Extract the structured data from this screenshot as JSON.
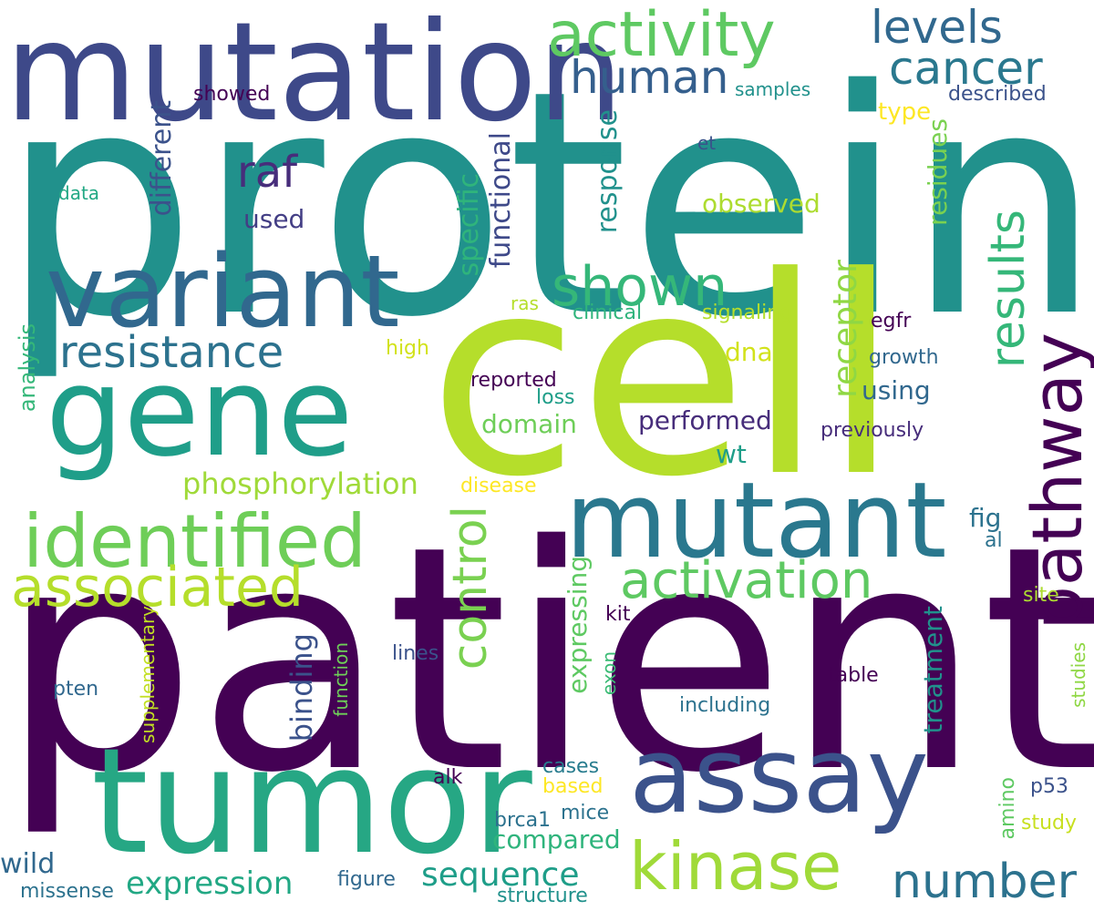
{
  "colors": {
    "background": "#ffffff",
    "dark_purple": "#440154",
    "indigo": "#3e4989",
    "blue_purple": "#472d7b",
    "steel_blue": "#31688e",
    "teal": "#21918c",
    "teal_green": "#1f9e89",
    "green": "#35b779",
    "light_green": "#6ece58",
    "lime": "#b5de2b",
    "yellow": "#fde725"
  },
  "words": [
    {
      "text": "protein",
      "color": "#21918c"
    },
    {
      "text": "patient",
      "color": "#440154"
    },
    {
      "text": "cell",
      "color": "#b5de2b"
    },
    {
      "text": "mutation",
      "color": "#3e4989"
    },
    {
      "text": "gene",
      "color": "#1f9e89"
    },
    {
      "text": "tumor",
      "color": "#26a784"
    },
    {
      "text": "variant",
      "color": "#31688e"
    },
    {
      "text": "mutant",
      "color": "#2a788e"
    },
    {
      "text": "assay",
      "color": "#3b528b"
    },
    {
      "text": "identified",
      "color": "#6ece58"
    },
    {
      "text": "activity",
      "color": "#5ec962"
    },
    {
      "text": "kinase",
      "color": "#a0da39"
    },
    {
      "text": "pathway",
      "color": "#440154"
    },
    {
      "text": "associated",
      "color": "#b5de2b"
    },
    {
      "text": "activation",
      "color": "#5ec962"
    },
    {
      "text": "shown",
      "color": "#35b779"
    },
    {
      "text": "resistance",
      "color": "#2c728e"
    },
    {
      "text": "cancer",
      "color": "#2a788e"
    },
    {
      "text": "human",
      "color": "#355f8d"
    },
    {
      "text": "number",
      "color": "#2c728e"
    },
    {
      "text": "control",
      "color": "#7ad151"
    },
    {
      "text": "levels",
      "color": "#31688e"
    },
    {
      "text": "raf",
      "color": "#472d7b"
    },
    {
      "text": "results",
      "color": "#35b779"
    },
    {
      "text": "expression",
      "color": "#22a884"
    },
    {
      "text": "sequence",
      "color": "#1f9e89"
    },
    {
      "text": "phosphorylation",
      "color": "#a0da39"
    },
    {
      "text": "performed",
      "color": "#472d7b"
    },
    {
      "text": "receptor",
      "color": "#8fd744"
    },
    {
      "text": "domain",
      "color": "#6ece58"
    },
    {
      "text": "compared",
      "color": "#2fb47c"
    },
    {
      "text": "wild",
      "color": "#31688e"
    },
    {
      "text": "binding",
      "color": "#3b528b"
    },
    {
      "text": "observed",
      "color": "#addc30"
    },
    {
      "text": "using",
      "color": "#31688e"
    },
    {
      "text": "response",
      "color": "#21918c"
    },
    {
      "text": "different",
      "color": "#3b528b"
    },
    {
      "text": "functional",
      "color": "#3e4989"
    },
    {
      "text": "specific",
      "color": "#2fb47c"
    },
    {
      "text": "treatment",
      "color": "#21918c"
    },
    {
      "text": "residues",
      "color": "#7ad151"
    },
    {
      "text": "expressing",
      "color": "#5ec962"
    },
    {
      "text": "dna",
      "color": "#d2e21b"
    },
    {
      "text": "used",
      "color": "#433e85"
    },
    {
      "text": "fig",
      "color": "#2c728e"
    },
    {
      "text": "wt",
      "color": "#1f9e89"
    },
    {
      "text": "type",
      "color": "#fde725"
    },
    {
      "text": "analysis",
      "color": "#35b779"
    },
    {
      "text": "supplementary",
      "color": "#c2df23"
    },
    {
      "text": "function",
      "color": "#6ece58"
    },
    {
      "text": "exon",
      "color": "#3bbb75"
    },
    {
      "text": "amino",
      "color": "#5ec962"
    },
    {
      "text": "studies",
      "color": "#8fd744"
    },
    {
      "text": "missense",
      "color": "#2c728e"
    },
    {
      "text": "structure",
      "color": "#21918c"
    },
    {
      "text": "figure",
      "color": "#31688e"
    },
    {
      "text": "showed",
      "color": "#440154"
    },
    {
      "text": "samples",
      "color": "#21918c"
    },
    {
      "text": "described",
      "color": "#3b528b"
    },
    {
      "text": "et",
      "color": "#3b528b"
    },
    {
      "text": "data",
      "color": "#22a884"
    },
    {
      "text": "ras",
      "color": "#b5de2b"
    },
    {
      "text": "clinical",
      "color": "#2fb47c"
    },
    {
      "text": "signaling",
      "color": "#b5de2b"
    },
    {
      "text": "egfr",
      "color": "#440154"
    },
    {
      "text": "high",
      "color": "#d2e21b"
    },
    {
      "text": "growth",
      "color": "#31688e"
    },
    {
      "text": "reported",
      "color": "#440154"
    },
    {
      "text": "loss",
      "color": "#1f9e89"
    },
    {
      "text": "previously",
      "color": "#472d7b"
    },
    {
      "text": "disease",
      "color": "#fde725"
    },
    {
      "text": "al",
      "color": "#2c728e"
    },
    {
      "text": "site",
      "color": "#addc30"
    },
    {
      "text": "kit",
      "color": "#440154"
    },
    {
      "text": "lines",
      "color": "#3b528b"
    },
    {
      "text": "table",
      "color": "#440154"
    },
    {
      "text": "pten",
      "color": "#31688e"
    },
    {
      "text": "including",
      "color": "#2c728e"
    },
    {
      "text": "cases",
      "color": "#287c8e"
    },
    {
      "text": "alk",
      "color": "#440154"
    },
    {
      "text": "based",
      "color": "#fde725"
    },
    {
      "text": "p53",
      "color": "#3b528b"
    },
    {
      "text": "mice",
      "color": "#2c728e"
    },
    {
      "text": "brca1",
      "color": "#2c728e"
    },
    {
      "text": "study",
      "color": "#c8e020"
    }
  ]
}
